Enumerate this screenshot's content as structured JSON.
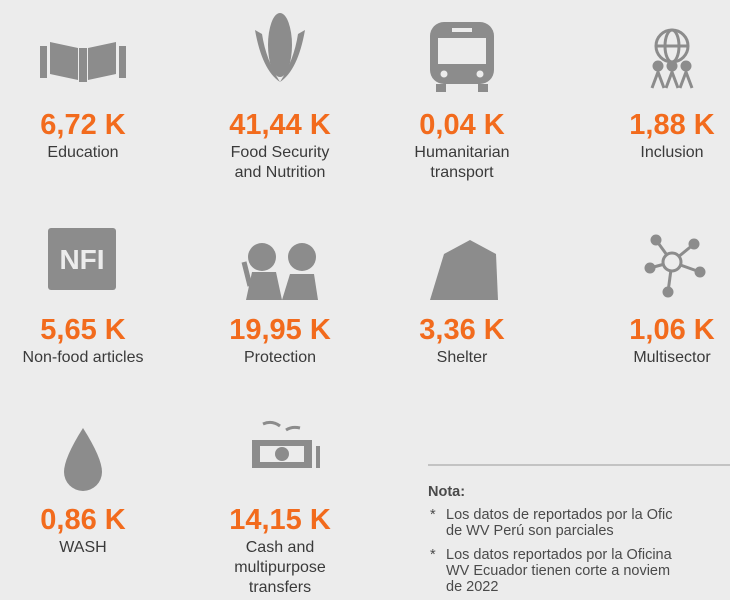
{
  "items": [
    {
      "value": "6,72 K",
      "label_lines": [
        "Education"
      ]
    },
    {
      "value": "41,44 K",
      "label_lines": [
        "Food Security",
        "and Nutrition"
      ]
    },
    {
      "value": "0,04 K",
      "label_lines": [
        "Humanitarian",
        "transport"
      ]
    },
    {
      "value": "1,88 K",
      "label_lines": [
        "Inclusion"
      ]
    },
    {
      "value": "5,65 K",
      "label_lines": [
        "Non-food articles"
      ],
      "icon_text": "NFI"
    },
    {
      "value": "19,95 K",
      "label_lines": [
        "Protection"
      ]
    },
    {
      "value": "3,36 K",
      "label_lines": [
        "Shelter"
      ]
    },
    {
      "value": "1,06 K",
      "label_lines": [
        "Multisector"
      ]
    },
    {
      "value": "0,86 K",
      "label_lines": [
        "WASH"
      ]
    },
    {
      "value": "14,15 K",
      "label_lines": [
        "Cash and",
        "multipurpose",
        "transfers"
      ]
    }
  ],
  "note": {
    "title": "Nota:",
    "bullet": "*",
    "entries": [
      [
        "Los datos de reportados por la Ofic",
        "de WV Perú son parciales"
      ],
      [
        "Los datos reportados por la Oficina",
        "WV Ecuador tienen corte a noviem",
        "de 2022"
      ]
    ]
  }
}
